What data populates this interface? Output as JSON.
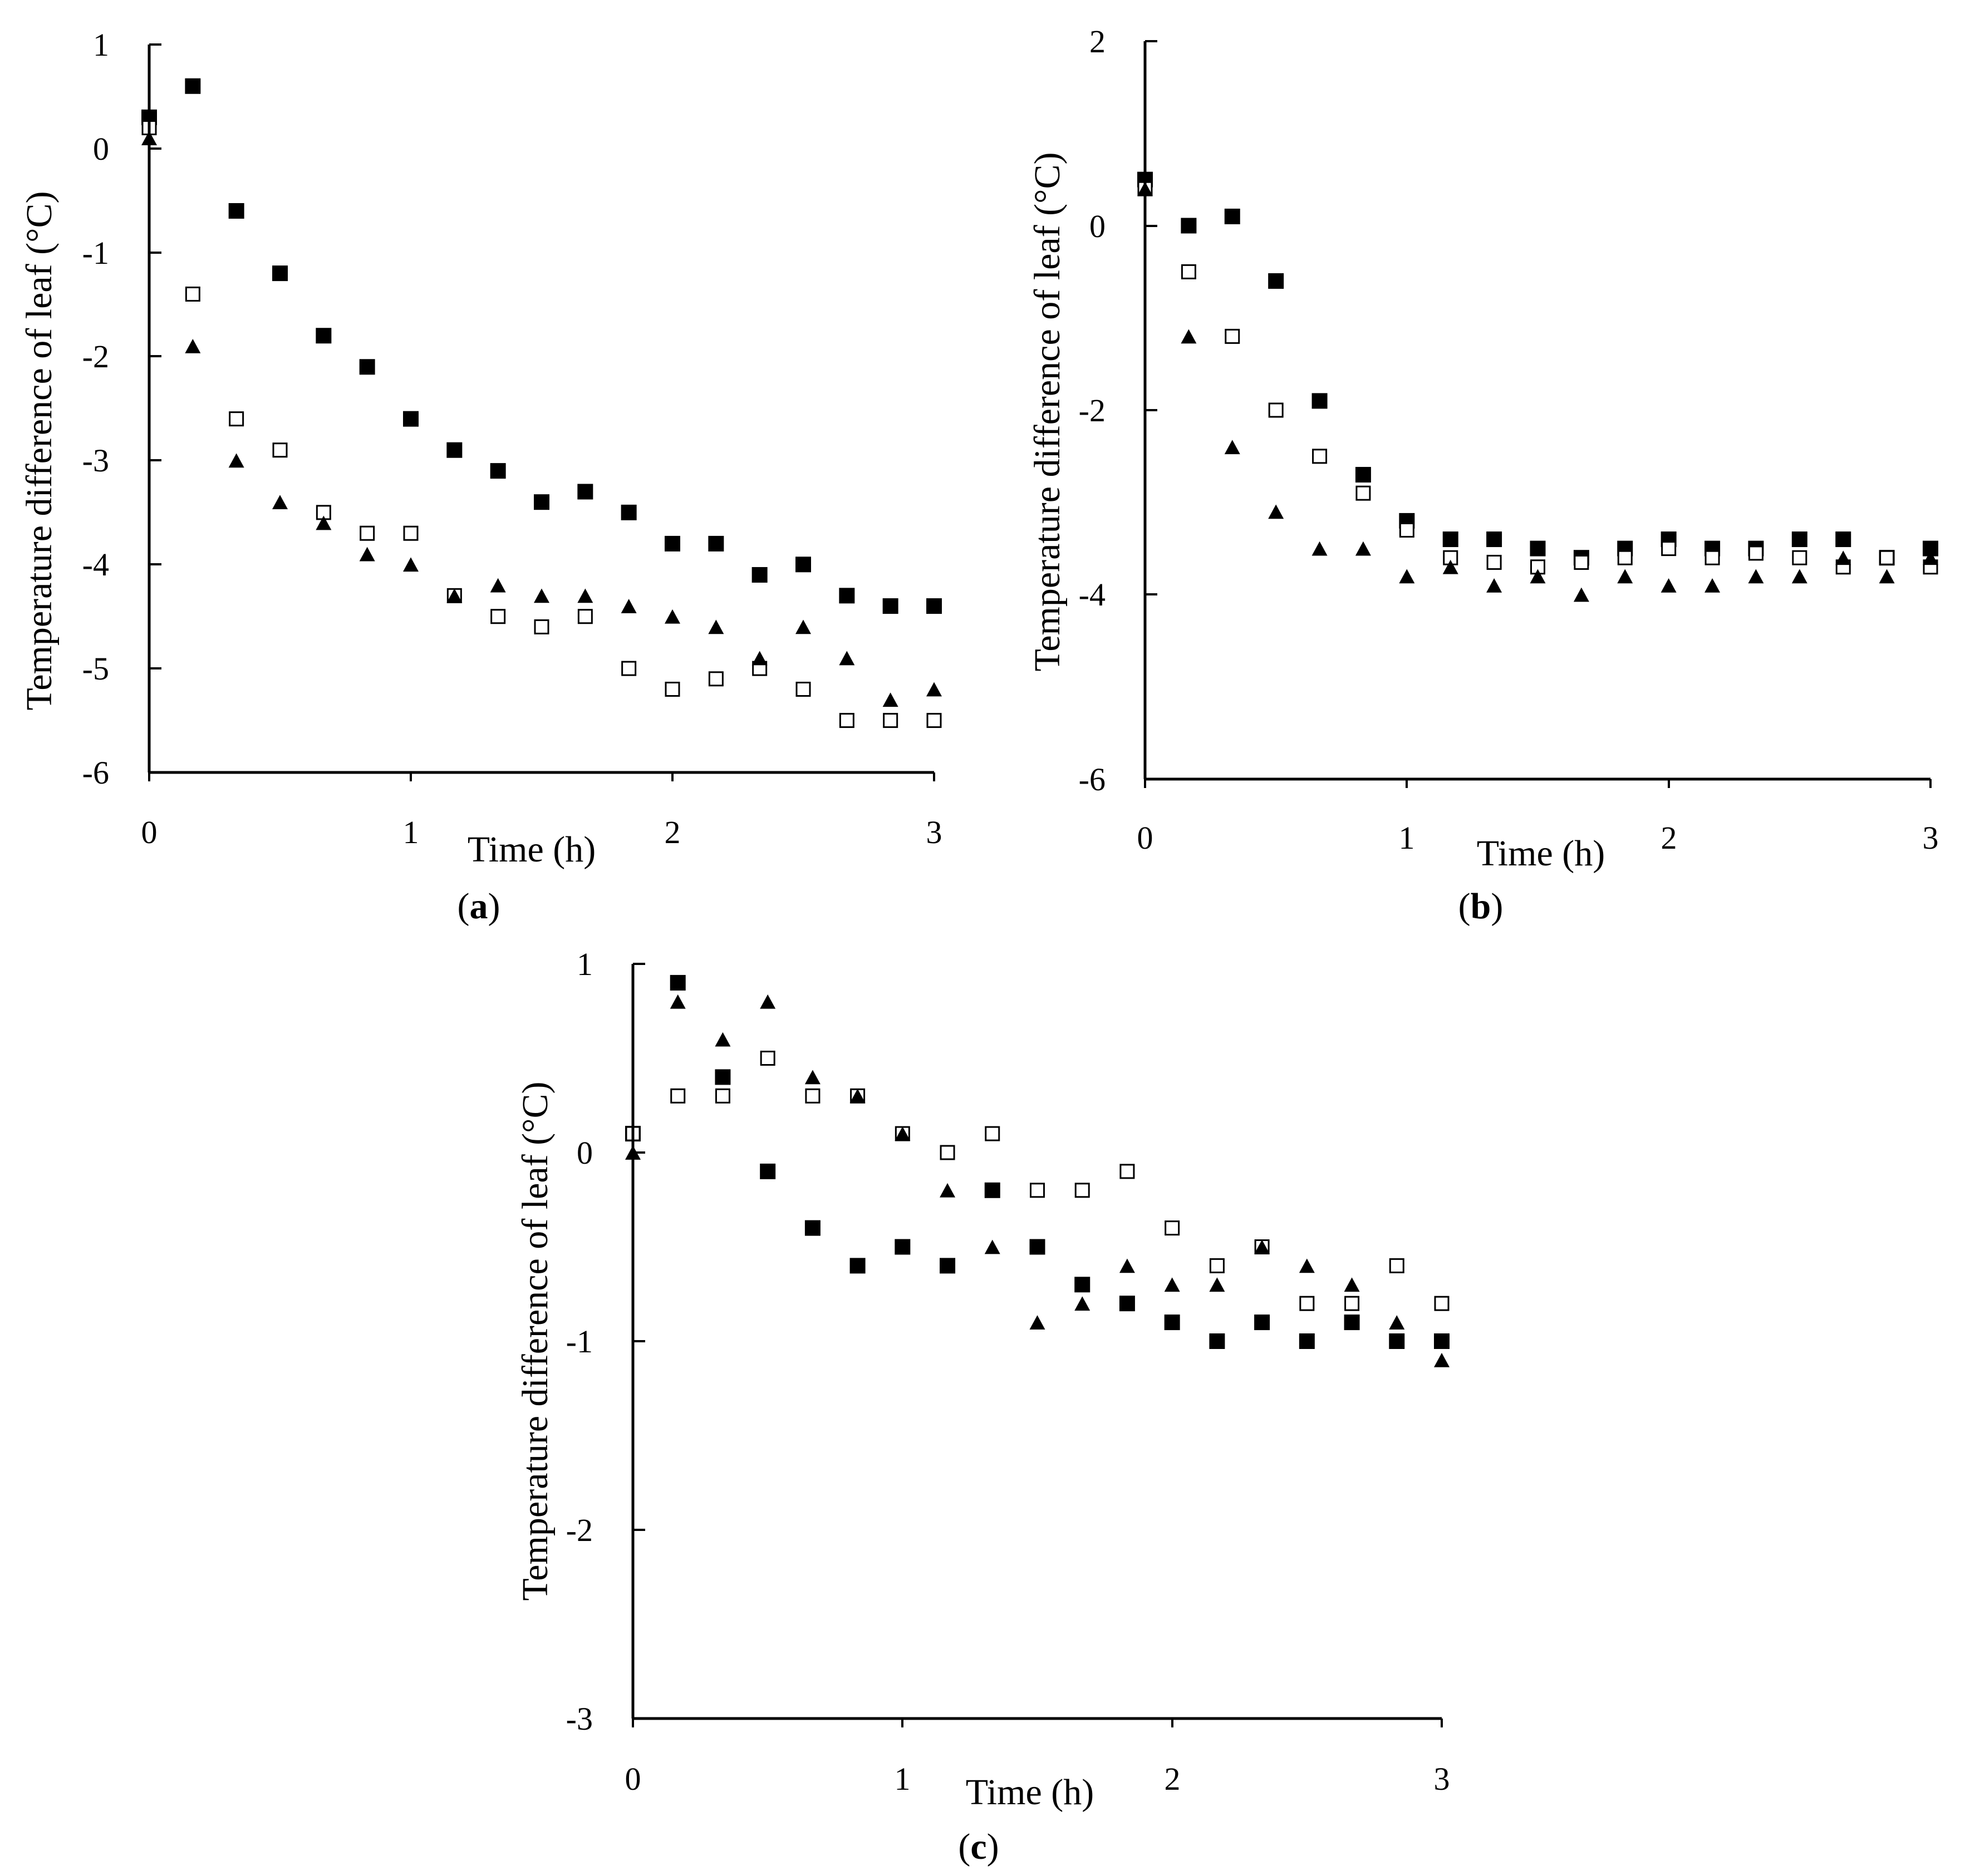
{
  "figure": {
    "panels": [
      {
        "id": "a",
        "label": "a",
        "xlabel": "Time (h)",
        "ylabel": "Temperature difference of leaf (°C)",
        "x_ticks": [
          "0",
          "1",
          "2",
          "3"
        ],
        "y_ticks": [
          "1",
          "0",
          "-1",
          "-2",
          "-3",
          "-4",
          "-5",
          "-6"
        ]
      },
      {
        "id": "b",
        "label": "b",
        "xlabel": "Time (h)",
        "ylabel": "Temperature difference of leaf (°C)",
        "x_ticks": [
          "0",
          "1",
          "2",
          "3"
        ],
        "y_ticks": [
          "2",
          "0",
          "-2",
          "-4",
          "-6"
        ]
      },
      {
        "id": "c",
        "label": "c",
        "xlabel": "Time (h)",
        "ylabel": "Temperature difference of leaf (°C)",
        "x_ticks": [
          "0",
          "1",
          "2",
          "3"
        ],
        "y_ticks": [
          "1",
          "0",
          "-1",
          "-2",
          "-3"
        ]
      }
    ]
  },
  "chart_data": [
    {
      "type": "scatter",
      "panel": "a",
      "xlabel": "Time (h)",
      "ylabel": "Temperature difference of leaf (°C)",
      "xlim": [
        0,
        3
      ],
      "ylim": [
        -6,
        1
      ],
      "x": [
        0,
        0.1667,
        0.3333,
        0.5,
        0.6667,
        0.8333,
        1,
        1.1667,
        1.3333,
        1.5,
        1.6667,
        1.8333,
        2,
        2.1667,
        2.3333,
        2.5,
        2.6667,
        2.8333,
        3
      ],
      "series": [
        {
          "marker": "filled-square",
          "values": [
            0.3,
            0.6,
            -0.6,
            -1.2,
            -1.8,
            -2.1,
            -2.6,
            -2.9,
            -3.1,
            -3.4,
            -3.3,
            -3.5,
            -3.8,
            -3.8,
            -4.1,
            -4.0,
            -4.3,
            -4.4,
            -4.4
          ]
        },
        {
          "marker": "open-square",
          "values": [
            0.2,
            -1.4,
            -2.6,
            -2.9,
            -3.5,
            -3.7,
            -3.7,
            -4.3,
            -4.5,
            -4.6,
            -4.5,
            -5.0,
            -5.2,
            -5.1,
            -5.0,
            -5.2,
            -5.5,
            -5.5,
            -5.5
          ]
        },
        {
          "marker": "filled-triangle",
          "values": [
            0.1,
            -1.9,
            -3.0,
            -3.4,
            -3.6,
            -3.9,
            -4.0,
            -4.3,
            -4.2,
            -4.3,
            -4.3,
            -4.4,
            -4.5,
            -4.6,
            -4.9,
            -4.6,
            -4.9,
            -5.3,
            -5.2
          ]
        }
      ]
    },
    {
      "type": "scatter",
      "panel": "b",
      "xlabel": "Time (h)",
      "ylabel": "Temperature difference of leaf (°C)",
      "xlim": [
        0,
        3
      ],
      "ylim": [
        -6,
        2
      ],
      "x": [
        0,
        0.1667,
        0.3333,
        0.5,
        0.6667,
        0.8333,
        1,
        1.1667,
        1.3333,
        1.5,
        1.6667,
        1.8333,
        2,
        2.1667,
        2.3333,
        2.5,
        2.6667,
        2.8333,
        3
      ],
      "series": [
        {
          "marker": "filled-square",
          "values": [
            0.5,
            0.0,
            0.1,
            -0.6,
            -1.9,
            -2.7,
            -3.2,
            -3.4,
            -3.4,
            -3.5,
            -3.6,
            -3.5,
            -3.4,
            -3.5,
            -3.5,
            -3.4,
            -3.4,
            -3.6,
            -3.5
          ]
        },
        {
          "marker": "open-square",
          "values": [
            0.4,
            -0.5,
            -1.2,
            -2.0,
            -2.5,
            -2.9,
            -3.3,
            -3.6,
            -3.65,
            -3.7,
            -3.65,
            -3.6,
            -3.5,
            -3.6,
            -3.55,
            -3.6,
            -3.7,
            -3.6,
            -3.7
          ]
        },
        {
          "marker": "filled-triangle",
          "values": [
            0.4,
            -1.2,
            -2.4,
            -3.1,
            -3.5,
            -3.5,
            -3.8,
            -3.7,
            -3.9,
            -3.8,
            -4.0,
            -3.8,
            -3.9,
            -3.9,
            -3.8,
            -3.8,
            -3.6,
            -3.8,
            -3.6
          ]
        }
      ]
    },
    {
      "type": "scatter",
      "panel": "c",
      "xlabel": "Time (h)",
      "ylabel": "Temperature difference of leaf (°C)",
      "xlim": [
        0,
        3
      ],
      "ylim": [
        -3,
        1
      ],
      "x": [
        0,
        0.1667,
        0.3333,
        0.5,
        0.6667,
        0.8333,
        1,
        1.1667,
        1.3333,
        1.5,
        1.6667,
        1.8333,
        2,
        2.1667,
        2.3333,
        2.5,
        2.6667,
        2.8333,
        3
      ],
      "series": [
        {
          "marker": "filled-square",
          "values": [
            0.1,
            0.9,
            0.4,
            -0.1,
            -0.4,
            -0.6,
            -0.5,
            -0.6,
            -0.2,
            -0.5,
            -0.7,
            -0.8,
            -0.9,
            -1.0,
            -0.9,
            -1.0,
            -0.9,
            -1.0,
            -1.0
          ]
        },
        {
          "marker": "open-square",
          "values": [
            0.1,
            0.3,
            0.3,
            0.5,
            0.3,
            0.3,
            0.1,
            0.0,
            0.1,
            -0.2,
            -0.2,
            -0.1,
            -0.4,
            -0.6,
            -0.5,
            -0.8,
            -0.8,
            -0.6,
            -0.8
          ]
        },
        {
          "marker": "filled-triangle",
          "values": [
            0.0,
            0.8,
            0.6,
            0.8,
            0.4,
            0.3,
            0.1,
            -0.2,
            -0.5,
            -0.9,
            -0.8,
            -0.6,
            -0.7,
            -0.7,
            -0.5,
            -0.6,
            -0.7,
            -0.9,
            -1.1
          ]
        }
      ]
    }
  ]
}
